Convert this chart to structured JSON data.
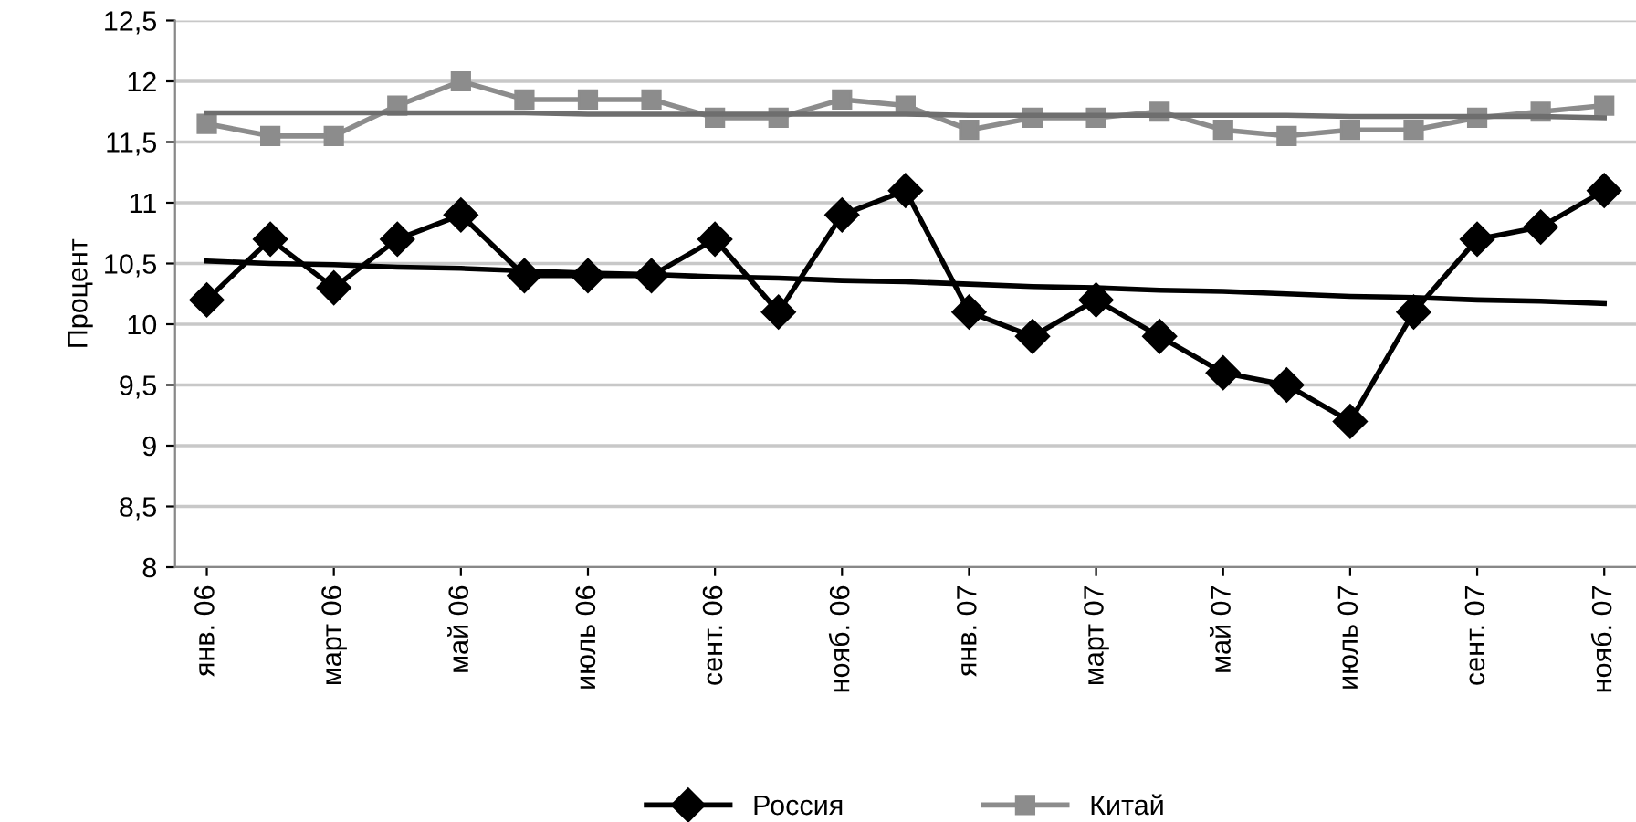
{
  "chart_data": {
    "type": "line",
    "ylabel": "Процент",
    "categories": [
      "янв. 06",
      null,
      "март 06",
      null,
      "май 06",
      null,
      "июль 06",
      null,
      "сент. 06",
      null,
      "нояб. 06",
      null,
      "янв. 07",
      null,
      "март 07",
      null,
      "май 07",
      null,
      "июль 07",
      null,
      "сент. 07",
      null,
      "нояб. 07"
    ],
    "series": [
      {
        "name": "Россия",
        "color": "#000000",
        "marker": "diamond",
        "values": [
          10.2,
          10.7,
          10.3,
          10.7,
          10.9,
          10.4,
          10.4,
          10.4,
          10.7,
          10.1,
          10.9,
          11.1,
          10.1,
          9.9,
          10.2,
          9.9,
          9.6,
          9.5,
          9.2,
          10.1,
          10.7,
          10.8,
          11.1
        ]
      },
      {
        "name": "Китай",
        "color": "#8c8c8c",
        "marker": "square",
        "values": [
          11.65,
          11.55,
          11.55,
          11.8,
          12.0,
          11.85,
          11.85,
          11.85,
          11.7,
          11.7,
          11.85,
          11.8,
          11.6,
          11.7,
          11.7,
          11.75,
          11.6,
          11.55,
          11.6,
          11.6,
          11.7,
          11.75,
          11.8
        ]
      },
      {
        "color": "#000000",
        "marker": "none",
        "values": [
          10.52,
          10.5,
          10.49,
          10.47,
          10.46,
          10.44,
          10.42,
          10.41,
          10.39,
          10.38,
          10.36,
          10.35,
          10.33,
          10.31,
          10.3,
          10.28,
          10.27,
          10.25,
          10.23,
          10.22,
          10.2,
          10.19,
          10.17
        ]
      },
      {
        "color": "#6e6e6e",
        "marker": "none",
        "values": [
          11.74,
          11.74,
          11.74,
          11.74,
          11.74,
          11.74,
          11.73,
          11.73,
          11.73,
          11.73,
          11.73,
          11.73,
          11.72,
          11.72,
          11.72,
          11.72,
          11.72,
          11.72,
          11.71,
          11.71,
          11.71,
          11.71,
          11.7
        ]
      }
    ],
    "ylim": [
      8,
      12.5
    ],
    "yticks": [
      {
        "value": 8,
        "label": "8"
      },
      {
        "value": 8.5,
        "label": "8,5"
      },
      {
        "value": 9,
        "label": "9"
      },
      {
        "value": 9.5,
        "label": "9,5"
      },
      {
        "value": 10,
        "label": "10"
      },
      {
        "value": 10.5,
        "label": "10,5"
      },
      {
        "value": 11,
        "label": "11"
      },
      {
        "value": 11.5,
        "label": "11,5"
      },
      {
        "value": 12,
        "label": "12"
      },
      {
        "value": 12.5,
        "label": "12,5"
      }
    ],
    "grid": "y",
    "legend": "bottom"
  }
}
